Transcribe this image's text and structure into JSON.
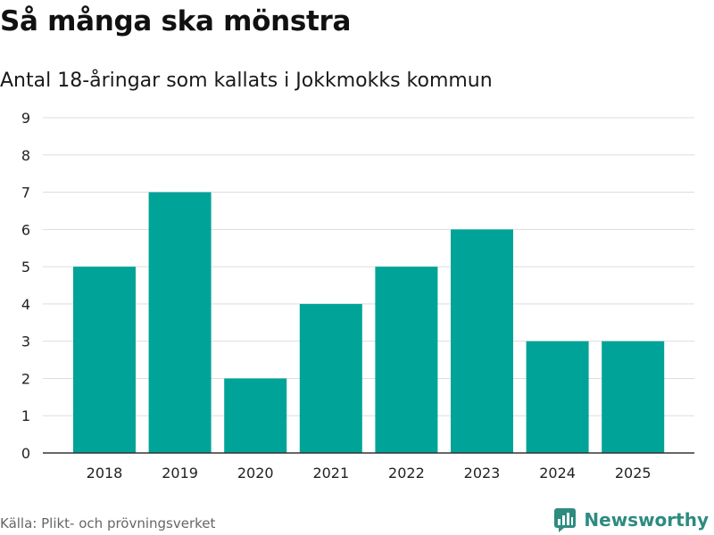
{
  "title": "Så många ska mönstra",
  "subtitle": "Antal 18-åringar som kallats i Jokkmokks kommun",
  "source": "Källa: Plikt- och prövningsverket",
  "brand": {
    "name": "Newsworthy",
    "icon": "newsworthy-logo-icon",
    "color": "#2e8b80"
  },
  "colors": {
    "bar": "#00a398",
    "grid": "#dddddd",
    "axis": "#333333"
  },
  "chart_data": {
    "type": "bar",
    "categories": [
      "2018",
      "2019",
      "2020",
      "2021",
      "2022",
      "2023",
      "2024",
      "2025"
    ],
    "values": [
      5,
      7,
      2,
      4,
      5,
      6,
      3,
      3
    ],
    "ylim": [
      0,
      9
    ],
    "yticks": [
      "0",
      "1",
      "2",
      "3",
      "4",
      "5",
      "6",
      "7",
      "8",
      "9"
    ],
    "grid": true,
    "xlabel": "",
    "ylabel": ""
  }
}
